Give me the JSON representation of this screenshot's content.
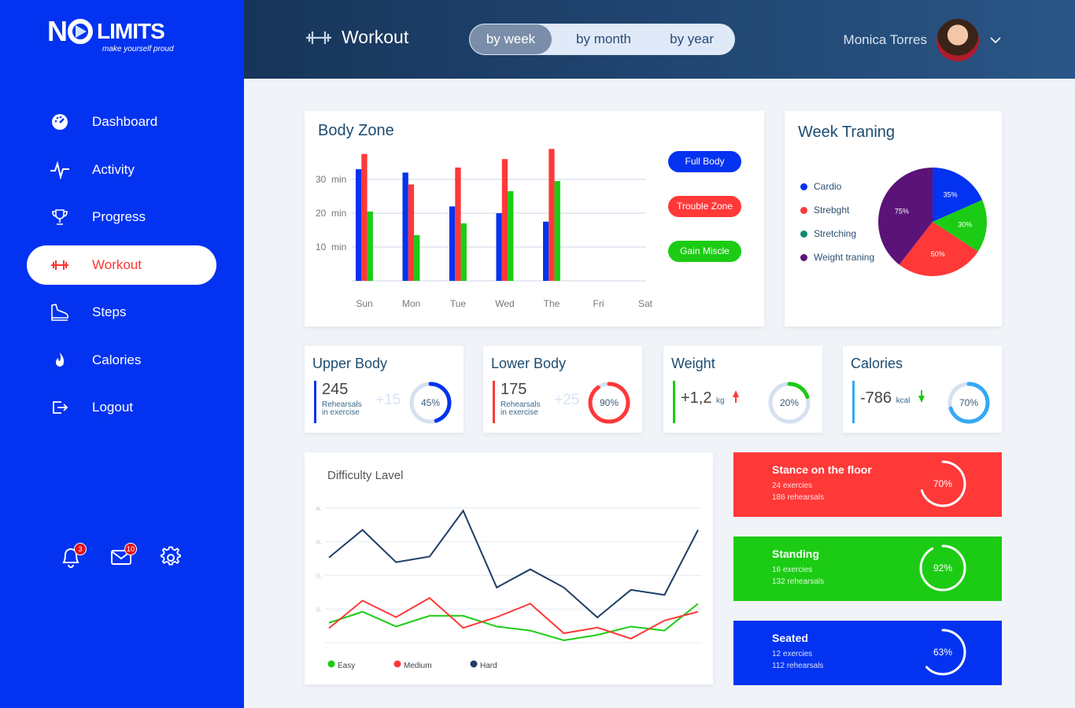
{
  "brand": {
    "logo_main": "NO LIMITS",
    "logo_text_no": "N",
    "logo_text_limits": "LIMITS",
    "tagline": "make yourself proud"
  },
  "colors": {
    "sidebar": "#0333f0",
    "blue": "#0333f0",
    "red": "#ff3838",
    "green": "#1ccc14",
    "navy": "#1f3e66",
    "purple": "#5b1377",
    "teal": "#0e8a70",
    "light_blue": "#35a9f5"
  },
  "sidebar": {
    "items": [
      {
        "label": "Dashboard",
        "icon": "dashboard-gauge-icon"
      },
      {
        "label": "Activity",
        "icon": "activity-pulse-icon"
      },
      {
        "label": "Progress",
        "icon": "trophy-icon"
      },
      {
        "label": "Workout",
        "icon": "dumbbell-icon",
        "active": true
      },
      {
        "label": "Steps",
        "icon": "shoe-icon"
      },
      {
        "label": "Calories",
        "icon": "flame-icon"
      },
      {
        "label": "Logout",
        "icon": "logout-icon"
      }
    ],
    "notifications": "3",
    "messages": "10"
  },
  "header": {
    "title": "Workout",
    "periods": [
      "by week",
      "by month",
      "by year"
    ],
    "selected_period": "by week",
    "user_name": "Monica Torres"
  },
  "body_zone": {
    "title": "Body Zone",
    "filters": [
      "Full Body",
      "Trouble Zone",
      "Gain Miscle"
    ]
  },
  "week_training": {
    "title": "Week Traning"
  },
  "stats": [
    {
      "title": "Upper Body",
      "value": "245",
      "sub1": "Rehearsals",
      "sub2": "in exercise",
      "delta": "+15",
      "percent": 45,
      "percent_label": "45%"
    },
    {
      "title": "Lower Body",
      "value": "175",
      "sub1": "Rehearsals",
      "sub2": "in exercise",
      "delta": "+25",
      "percent": 90,
      "percent_label": "90%"
    },
    {
      "title": "Weight",
      "value": "+1,2",
      "unit": "kg",
      "trend": "up",
      "percent": 20,
      "percent_label": "20%"
    },
    {
      "title": "Calories",
      "value": "-786",
      "unit": "kcal",
      "trend": "down",
      "percent": 70,
      "percent_label": "70%"
    }
  ],
  "difficulty": {
    "title": "Difficulty Lavel"
  },
  "exercises": [
    {
      "title": "Stance on the floor",
      "count": "24 exercies",
      "rehearsals": "186 rehearsals",
      "percent": 70,
      "percent_label": "70%",
      "color": "#ff3838"
    },
    {
      "title": "Standing",
      "count": "16 exercies",
      "rehearsals": "132 rehearsals",
      "percent": 92,
      "percent_label": "92%",
      "color": "#1ccc14"
    },
    {
      "title": "Seated",
      "count": "12 exercies",
      "rehearsals": "112 rehearsals",
      "percent": 63,
      "percent_label": "63%",
      "color": "#0333f0"
    }
  ],
  "chart_data": [
    {
      "type": "bar",
      "title": "Body Zone",
      "categories": [
        "Sun",
        "Mon",
        "Tue",
        "Wed",
        "The",
        "Fri",
        "Sat"
      ],
      "yticks": [
        "10  min",
        "20  min",
        "30  min"
      ],
      "ytick_values": [
        10,
        20,
        30
      ],
      "ylim": [
        0,
        40
      ],
      "grid": true,
      "series": [
        {
          "name": "Full Body",
          "color": "#0333f0",
          "values": [
            33,
            32,
            22,
            20,
            17.5,
            null,
            null
          ]
        },
        {
          "name": "Trouble Zone",
          "color": "#ff3838",
          "values": [
            37.5,
            28.5,
            33.5,
            36,
            39,
            null,
            null
          ]
        },
        {
          "name": "Gain Miscle",
          "color": "#1ccc14",
          "values": [
            20.5,
            13.5,
            17,
            26.5,
            29.5,
            null,
            null
          ]
        }
      ],
      "legend": "right"
    },
    {
      "type": "pie",
      "title": "Week Traning",
      "legend": "left",
      "slices": [
        {
          "name": "Cardio",
          "value": 35,
          "label": "35%",
          "color": "#0333f0"
        },
        {
          "name": "Strebght",
          "value": 30,
          "label": "30%",
          "color": "#1ccc14",
          "legend_color": "#ff3838"
        },
        {
          "name": "Stretching",
          "value": 50,
          "label": "50%",
          "color": "#ff3838",
          "legend_color": "#0e8a70"
        },
        {
          "name": "Weight traning",
          "value": 75,
          "label": "75%",
          "color": "#5b1377"
        }
      ]
    },
    {
      "type": "line",
      "title": "Difficulty Lavel",
      "yticks": [
        "1L",
        "2L",
        "3L",
        "4L"
      ],
      "ytick_values": [
        1,
        2,
        3,
        4
      ],
      "ylim": [
        0,
        4
      ],
      "grid": true,
      "legend": "bottom-left",
      "series": [
        {
          "name": "Easy",
          "color": "#1ccc14",
          "values": [
            0.59,
            0.92,
            0.48,
            0.8,
            0.8,
            0.48,
            0.36,
            0.07,
            0.23,
            0.48,
            0.36,
            1.16
          ]
        },
        {
          "name": "Medium",
          "color": "#ff3838",
          "values": [
            0.43,
            1.25,
            0.76,
            1.33,
            0.44,
            0.76,
            1.16,
            0.28,
            0.45,
            0.12,
            0.66,
            0.92
          ]
        },
        {
          "name": "Hard",
          "color": "#1f3e66",
          "values": [
            2.53,
            3.35,
            2.39,
            2.56,
            3.92,
            1.64,
            2.18,
            1.64,
            0.75,
            1.57,
            1.42,
            3.35
          ]
        }
      ]
    }
  ]
}
